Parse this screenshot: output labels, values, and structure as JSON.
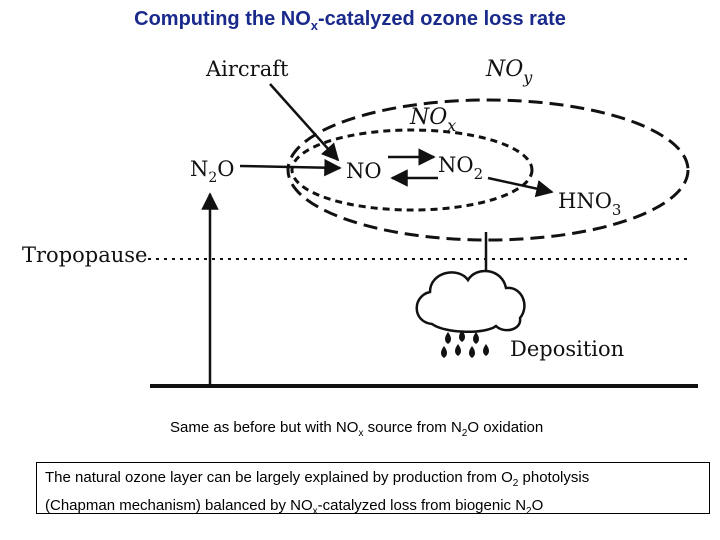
{
  "title": {
    "part1": "Computing the NO",
    "sub": "x",
    "part2": "-catalyzed ozone loss rate"
  },
  "diagram": {
    "aircraft": "Aircraft",
    "noy": {
      "base": "NO",
      "sub": "y"
    },
    "nox": {
      "base": "NO",
      "sub": "x"
    },
    "n2o": {
      "base": "N",
      "sub": "2",
      "tail": "O"
    },
    "no": "NO",
    "no2": {
      "base": "NO",
      "sub": "2"
    },
    "hno3": {
      "base": "HNO",
      "sub": "3"
    },
    "tropopause": "Tropopause",
    "deposition": "Deposition"
  },
  "caption": {
    "p1": "Same as before but with NO",
    "sub1": "x",
    "p2": " source from N",
    "sub2": "2",
    "p3": "O oxidation"
  },
  "summary": {
    "line1_p1": "The natural ozone layer can be largely explained by production from O",
    "line1_sub": "2",
    "line1_p2": " photolysis",
    "line2_p1": "(Chapman mechanism) balanced by NO",
    "line2_sub1": "x",
    "line2_p2": "-catalyzed loss from biogenic N",
    "line2_sub2": "2",
    "line2_p3": "O"
  },
  "colors": {
    "title": "#1a2a8c",
    "ink": "#111111"
  }
}
